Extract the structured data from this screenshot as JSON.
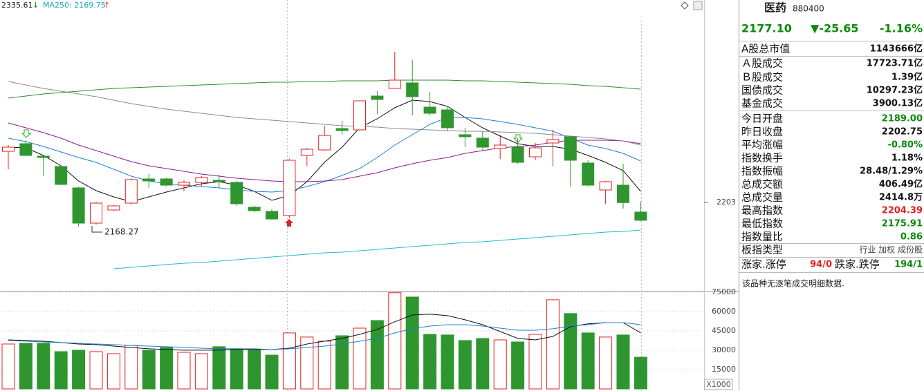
{
  "chart_data": [
    {
      "type": "candlestick",
      "annotations": [
        "2335.61",
        "MA250: 2169.75"
      ],
      "open": [
        2277,
        2288,
        2270,
        2255,
        2224,
        2173,
        2192,
        2202,
        2237,
        2237,
        2228,
        2232,
        2235,
        2232,
        2196,
        2190,
        2184,
        2271,
        2279,
        2310,
        2308,
        2357,
        2368,
        2376,
        2341,
        2337,
        2301,
        2296,
        2281,
        2283,
        2269,
        2289,
        2298,
        2260,
        2221,
        2228,
        2189.0
      ],
      "close": [
        2283,
        2271,
        2268,
        2229,
        2173,
        2202,
        2198,
        2236,
        2234,
        2228,
        2232,
        2239,
        2233,
        2201,
        2191,
        2179,
        2264,
        2280,
        2300,
        2307,
        2350,
        2352,
        2380,
        2356,
        2332,
        2311,
        2298,
        2283,
        2286,
        2261,
        2282,
        2294,
        2264,
        2228,
        2233,
        2202.75,
        2177.1
      ],
      "high": [
        2286,
        2293,
        2270,
        2256,
        2226,
        2204,
        2199,
        2238,
        2244,
        2239,
        2235,
        2241,
        2243,
        2234,
        2198,
        2193,
        2266,
        2282,
        2314,
        2321,
        2350,
        2364,
        2421,
        2409,
        2363,
        2341,
        2311,
        2306,
        2301,
        2296,
        2289,
        2308,
        2299,
        2264,
        2234,
        2259,
        2204.39
      ],
      "low": [
        2251,
        2270,
        2241,
        2228,
        2168.27,
        2171,
        2191,
        2200,
        2224,
        2226,
        2219,
        2226,
        2224,
        2198,
        2189,
        2178,
        2181,
        2256,
        2278,
        2301,
        2307,
        2331,
        2368,
        2329,
        2329,
        2306,
        2283,
        2278,
        2266,
        2259,
        2264,
        2256,
        2226,
        2226,
        2201,
        2194,
        2175.91
      ],
      "up_color": "#e02020",
      "down_color": "#2f962f",
      "series": [
        {
          "color": "#111111",
          "values": [
            2283,
            2282,
            2271,
            2256,
            2234,
            2220,
            2211,
            2204,
            2211,
            2218,
            2224,
            2230,
            2233,
            2228,
            2219,
            2206,
            2213,
            2233,
            2261,
            2283,
            2311,
            2324,
            2340,
            2351,
            2349,
            2342,
            2326,
            2311,
            2299,
            2288,
            2284,
            2284,
            2280,
            2271,
            2261,
            2249,
            2219
          ]
        },
        {
          "color": "#1f7fd0",
          "values": [
            2296,
            2291,
            2284,
            2276,
            2268,
            2261,
            2251,
            2241,
            2234,
            2230,
            2228,
            2226,
            2224,
            2221,
            2219,
            2218,
            2220,
            2226,
            2233,
            2242,
            2252,
            2268,
            2286,
            2301,
            2316,
            2326,
            2326,
            2324,
            2320,
            2316,
            2311,
            2306,
            2296,
            2286,
            2281,
            2274,
            2263
          ]
        },
        {
          "color": "#8a1a8a",
          "values": [
            2318,
            2311,
            2304,
            2296,
            2286,
            2278,
            2270,
            2262,
            2256,
            2252,
            2248,
            2244,
            2241,
            2238,
            2236,
            2234,
            2233,
            2233,
            2234,
            2236,
            2241,
            2246,
            2253,
            2259,
            2264,
            2268,
            2274,
            2278,
            2282,
            2284,
            2286,
            2290,
            2293,
            2293,
            2293,
            2292,
            2288
          ]
        },
        {
          "color": "#8a8a8a",
          "values": [
            2378,
            2373,
            2368,
            2364,
            2360,
            2356,
            2351,
            2346,
            2342,
            2338,
            2335,
            2332,
            2329,
            2326,
            2324,
            2322,
            2320,
            2318,
            2316,
            2314,
            2313,
            2312,
            2310,
            2309,
            2308,
            2307,
            2306,
            2306,
            2305,
            2304,
            2303,
            2301,
            2299,
            2297,
            2295,
            2292,
            2286
          ]
        },
        {
          "color": "#2e8b2e",
          "values": [
            2354,
            2357,
            2360,
            2362,
            2364,
            2366,
            2368,
            2369,
            2370,
            2371,
            2372,
            2373,
            2374,
            2375,
            2376,
            2377,
            2377,
            2378,
            2378,
            2379,
            2379,
            2379,
            2380,
            2380,
            2380,
            2380,
            2379,
            2379,
            2378,
            2377,
            2376,
            2375,
            2374,
            2372,
            2371,
            2369,
            2367
          ]
        },
        {
          "color": "#22b8c8",
          "values": [
            null,
            null,
            null,
            null,
            null,
            null,
            2107,
            2109,
            2111,
            2113,
            2115,
            2116,
            2118,
            2120,
            2122,
            2124,
            2126,
            2128,
            2130,
            2131,
            2133,
            2135,
            2137,
            2139,
            2141,
            2143,
            2145,
            2146,
            2148,
            2150,
            2152,
            2154,
            2156,
            2158,
            2160,
            2161,
            2163
          ]
        }
      ],
      "ylim": [
        2075,
        2496
      ],
      "yticks": [
        2203
      ]
    },
    {
      "type": "bar",
      "values": [
        34800,
        35400,
        35400,
        28900,
        30000,
        28900,
        27300,
        33700,
        30000,
        32100,
        28400,
        27300,
        32700,
        31100,
        30000,
        26200,
        43400,
        40200,
        37000,
        41200,
        47100,
        53000,
        74500,
        71200,
        42300,
        41800,
        37500,
        39100,
        38000,
        36400,
        42300,
        69100,
        58400,
        43400,
        40200,
        41800,
        24600
      ],
      "series": [
        {
          "color": "#111111",
          "values": [
            38000,
            37500,
            37000,
            35900,
            34800,
            34300,
            33200,
            32100,
            31100,
            30500,
            30000,
            30000,
            30000,
            30500,
            30500,
            30500,
            31600,
            34800,
            37000,
            39100,
            42300,
            46100,
            52000,
            57300,
            57900,
            56800,
            53600,
            49800,
            44500,
            39100,
            38000,
            40700,
            48200,
            50400,
            51400,
            51400,
            43400
          ]
        },
        {
          "color": "#1f7fd0",
          "values": [
            37500,
            37000,
            36400,
            35900,
            35400,
            34800,
            34300,
            33700,
            33200,
            32700,
            32100,
            31600,
            31100,
            31100,
            31100,
            30500,
            31100,
            32100,
            33200,
            34800,
            37000,
            39100,
            43400,
            46600,
            48700,
            49800,
            49800,
            48700,
            47100,
            45500,
            45500,
            46600,
            48700,
            49800,
            51400,
            51400,
            49800
          ]
        }
      ],
      "ylim": [
        0,
        76000
      ],
      "yticks": [
        15000,
        30000,
        45000,
        60000,
        75000
      ],
      "grid": true,
      "unit_label": "X1000"
    }
  ],
  "panel": {
    "name": "医药",
    "code": "880400",
    "price": "2177.10",
    "change": "▼-25.65",
    "change_pct": "-1.16%",
    "quote_color": "#0a8a0a",
    "rows": [
      {
        "label": "A股总市值",
        "value": "1143666亿",
        "color": "#111111"
      },
      {
        "label": "Ａ股成交",
        "value": "17723.71亿",
        "color": "#111111"
      },
      {
        "label": "Ｂ股成交",
        "value": "1.39亿",
        "color": "#111111"
      },
      {
        "label": "国债成交",
        "value": "10297.23亿",
        "color": "#111111"
      },
      {
        "label": "基金成交",
        "value": "3900.13亿",
        "color": "#111111"
      },
      {
        "label": "今日开盘",
        "value": "2189.00",
        "color": "#0a8a0a"
      },
      {
        "label": "昨日收盘",
        "value": "2202.75",
        "color": "#111111"
      },
      {
        "label": "平均涨幅",
        "value": "-0.80%",
        "color": "#0a8a0a"
      },
      {
        "label": "指数换手",
        "value": "1.18%",
        "color": "#111111"
      },
      {
        "label": "指数振幅",
        "value": "28.48/1.29%",
        "color": "#111111"
      },
      {
        "label": "总成交额",
        "value": "406.49亿",
        "color": "#111111"
      },
      {
        "label": "总成交量",
        "value": "2414.8万",
        "color": "#111111"
      },
      {
        "label": "最高指数",
        "value": "2204.39",
        "color": "#e02020"
      },
      {
        "label": "最低指数",
        "value": "2175.91",
        "color": "#0a8a0a"
      },
      {
        "label": "指数量比",
        "value": "0.86",
        "color": "#0a8a0a"
      },
      {
        "label": "板指类型",
        "value": "行业 加权 成份股",
        "color": "#444444"
      }
    ],
    "limit_row": {
      "up_label": "涨家.涨停",
      "up_value": "94/0",
      "up_color": "#e02020",
      "down_label": "跌家.跌停",
      "down_value": "194/1",
      "down_color": "#0a8a0a"
    },
    "note": "该品种无逐笔成交明细数据."
  }
}
